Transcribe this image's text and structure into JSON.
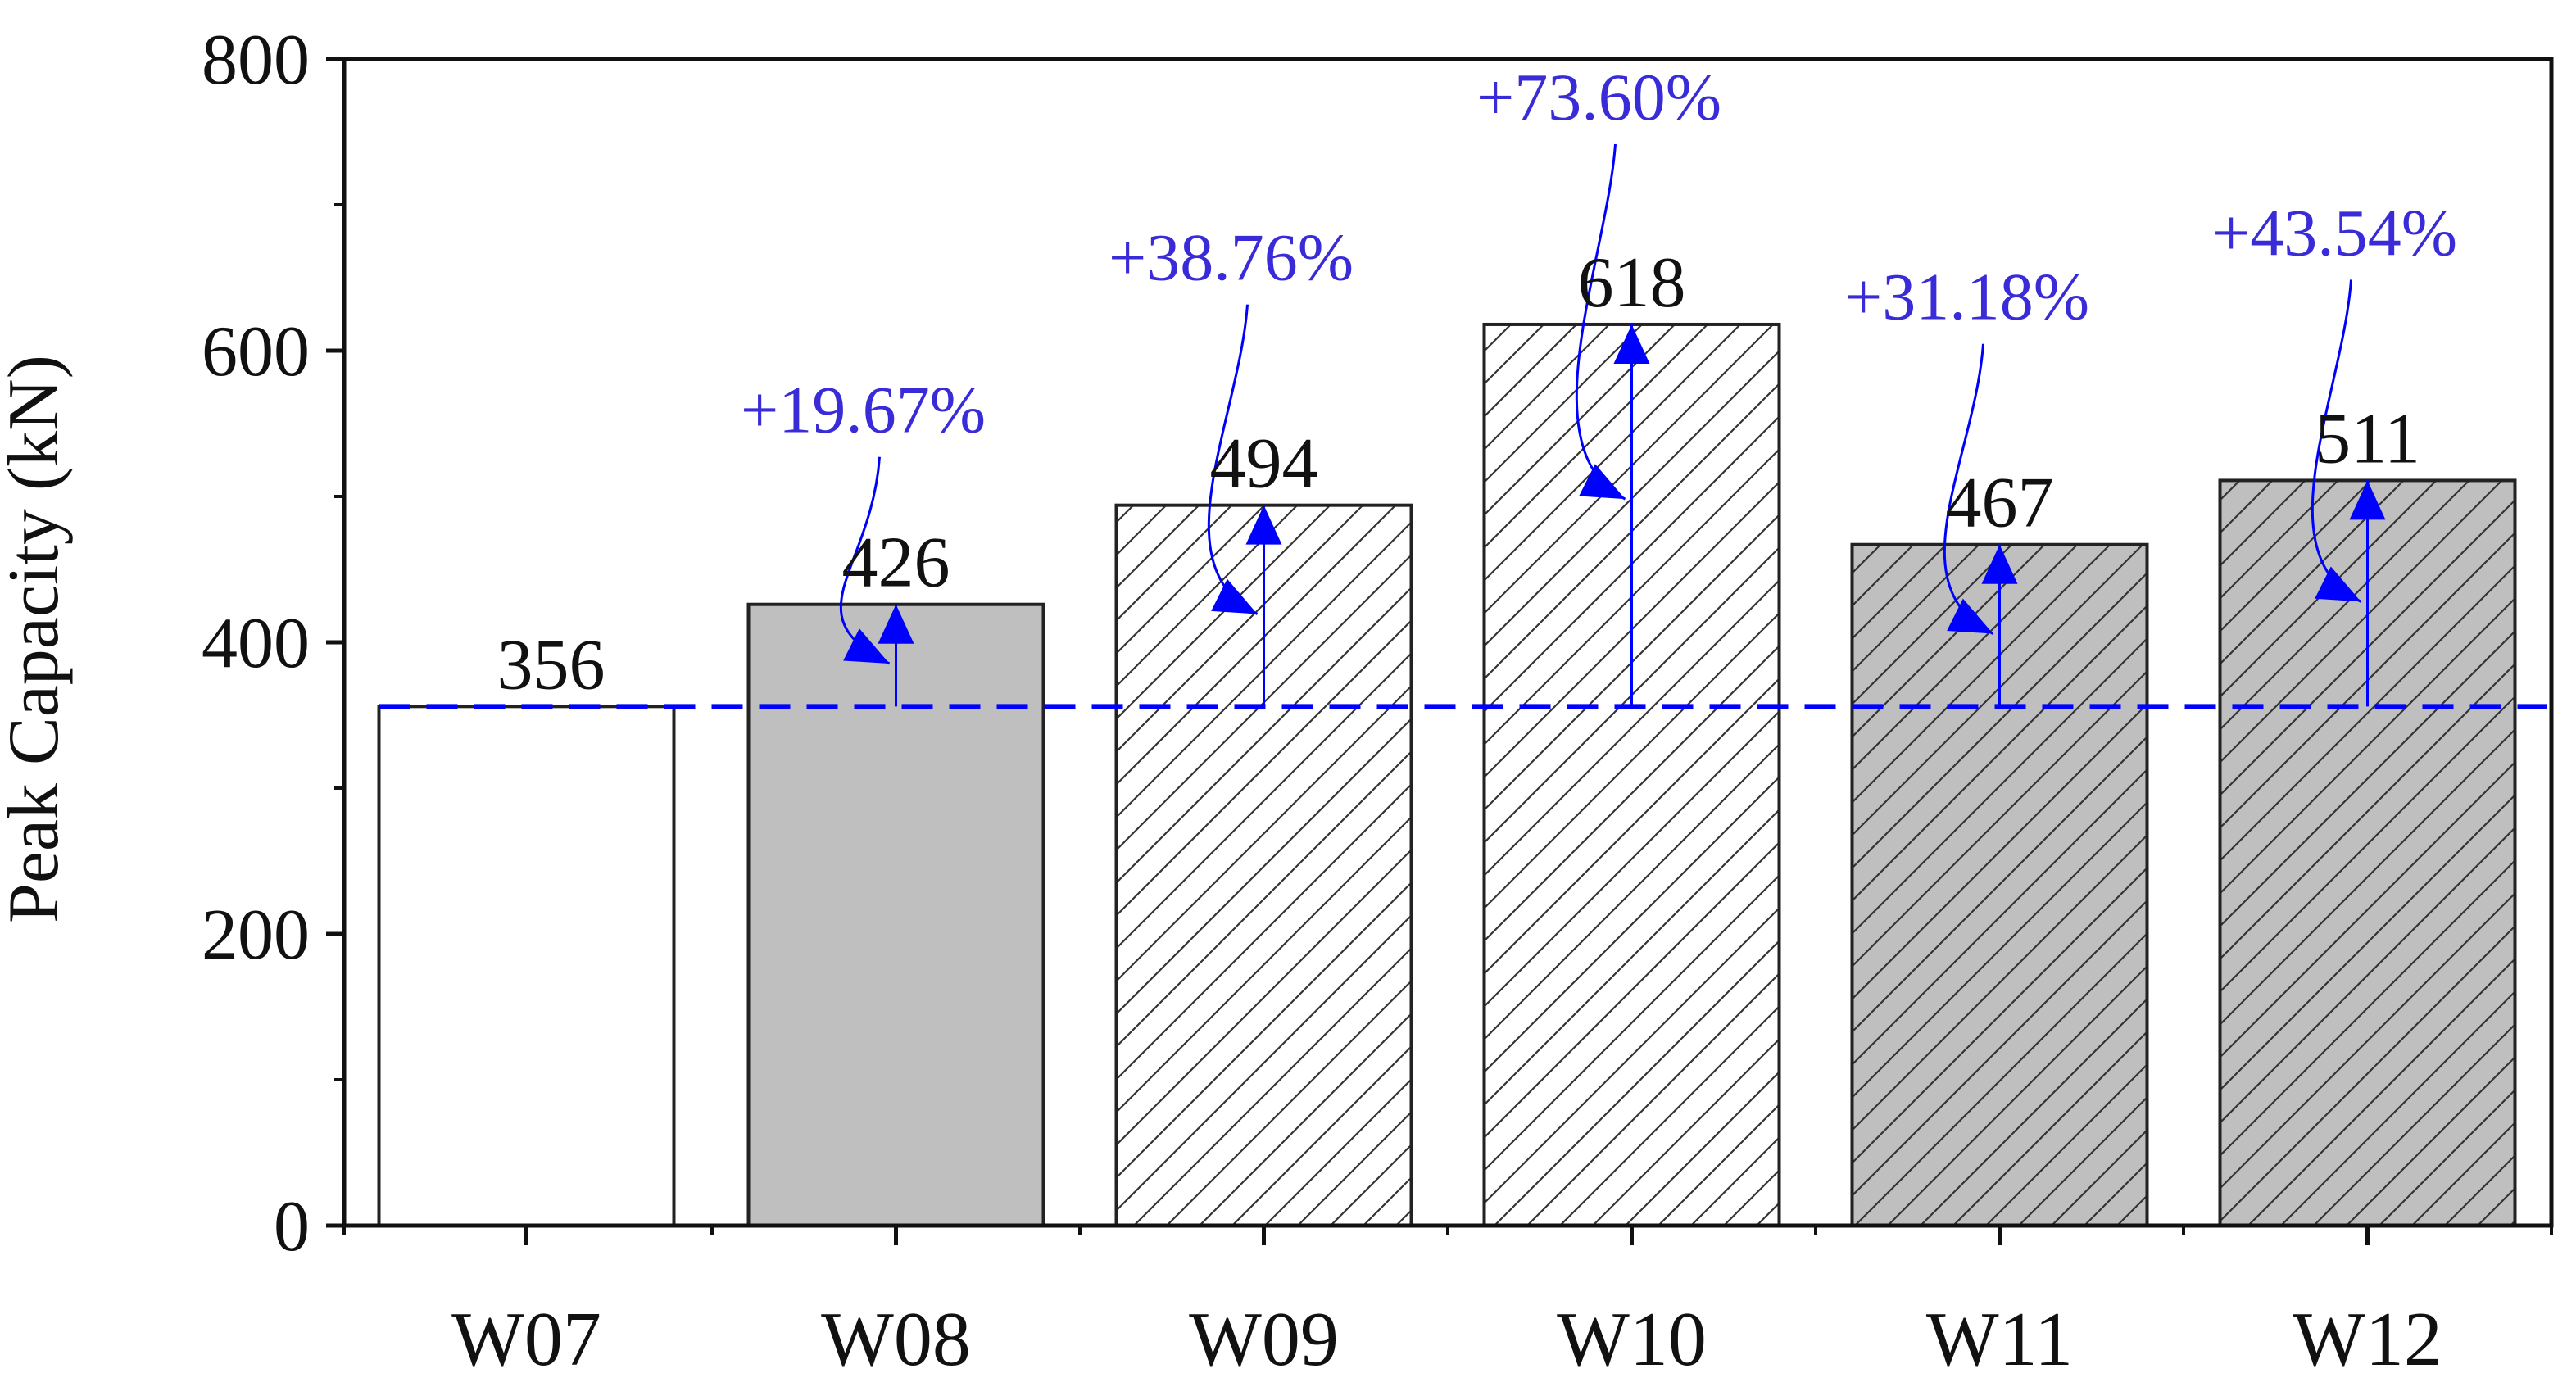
{
  "chart_data": {
    "type": "bar",
    "ylabel": "Peak Capacity (kN)",
    "xlabel": "",
    "ylim": [
      0,
      800
    ],
    "yticks": [
      0,
      200,
      400,
      600,
      800
    ],
    "yticks_labels": [
      "0",
      "200",
      "400",
      "600",
      "800"
    ],
    "minor_tick_step": 100,
    "grid": false,
    "categories": [
      "W07",
      "W08",
      "W09",
      "W10",
      "W11",
      "W12"
    ],
    "values": [
      356,
      426,
      494,
      618,
      467,
      511
    ],
    "value_labels": [
      "356",
      "426",
      "494",
      "618",
      "467",
      "511"
    ],
    "bar_styles": [
      {
        "fill": "#ffffff",
        "hatch": false
      },
      {
        "fill": "#bfbfbf",
        "hatch": false
      },
      {
        "fill": "#ffffff",
        "hatch": true
      },
      {
        "fill": "#ffffff",
        "hatch": true
      },
      {
        "fill": "#bfbfbf",
        "hatch": true
      },
      {
        "fill": "#bfbfbf",
        "hatch": true
      }
    ],
    "reference_value": 356,
    "increase_labels": [
      "",
      "+19.67%",
      "+38.76%",
      "+73.60%",
      "+31.18%",
      "+43.54%"
    ],
    "colors": {
      "bar_edge": "#222222",
      "hatch": "#333333",
      "annotation": "#0000ff",
      "annotation_text": "#3a2bd8",
      "axis": "#111111"
    }
  }
}
